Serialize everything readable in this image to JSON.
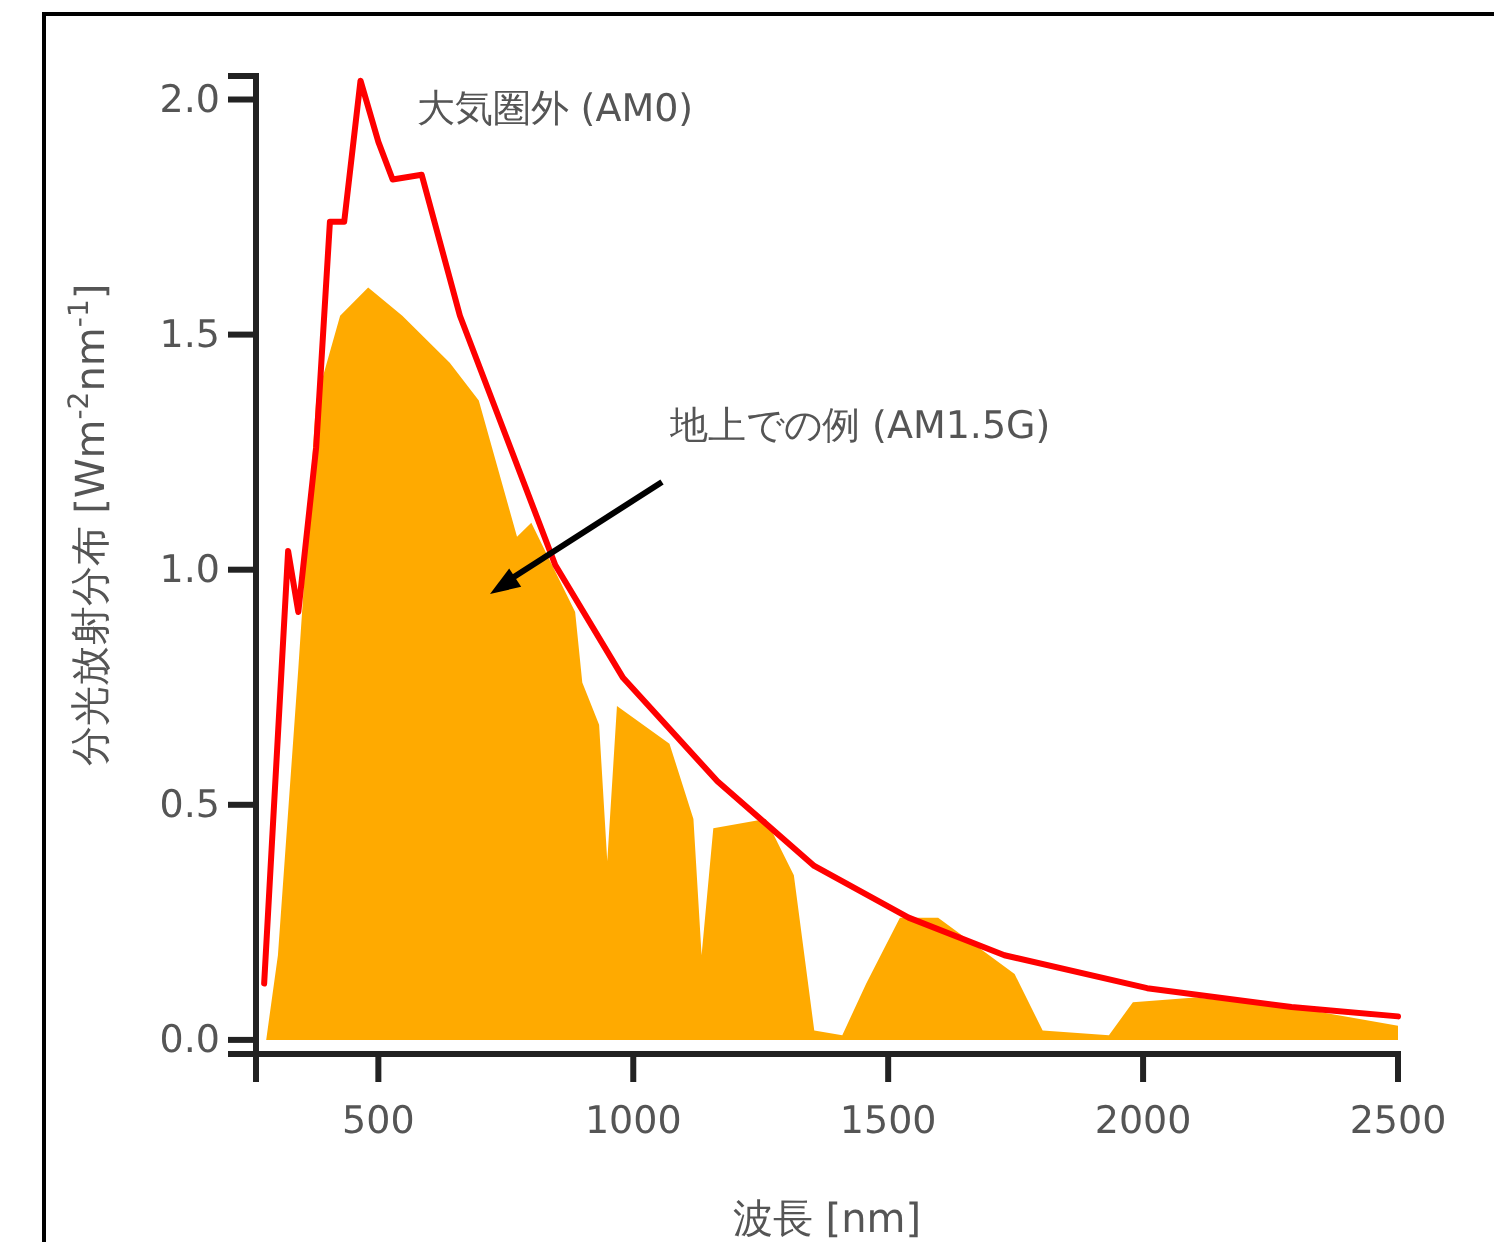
{
  "chart_data": {
    "type": "line",
    "xlabel": "波長 [nm]",
    "ylabel": "分光放射分布 [Wm$^{-2}$nm$^{-1}$]",
    "xlim": [
      260,
      2500
    ],
    "xticks": [
      500,
      1000,
      1500,
      2000,
      2500
    ],
    "ylim": [
      -0.03,
      2.05
    ],
    "yticks": [
      {
        "value": 0,
        "label": "0.0"
      },
      {
        "value": 0.5,
        "label": "0.5"
      },
      {
        "value": 1,
        "label": "1.0"
      },
      1.5,
      {
        "value": 2,
        "label": "2.0"
      }
    ],
    "grid": false,
    "legend": false,
    "annotations": [
      "地上での例 (AM1.5G)"
    ],
    "series": [
      {
        "type": "area",
        "color": "#ffaa00",
        "x": [
          280,
          303,
          343,
          378,
          425,
          480,
          547,
          640,
          697,
          772,
          800,
          886,
          900,
          933,
          949,
          968,
          1071,
          1118,
          1134,
          1157,
          1260,
          1315,
          1355,
          1410,
          1457,
          1523,
          1598,
          1748,
          1803,
          1933,
          1980,
          2102,
          2291,
          2500
        ],
        "values": [
          0,
          0.18,
          0.79,
          1.36,
          1.54,
          1.6,
          1.54,
          1.44,
          1.36,
          1.07,
          1.1,
          0.91,
          0.76,
          0.67,
          0.38,
          0.71,
          0.63,
          0.47,
          0.18,
          0.45,
          0.47,
          0.35,
          0.02,
          0.01,
          0.12,
          0.26,
          0.26,
          0.14,
          0.02,
          0.01,
          0.08,
          0.09,
          0.07,
          0.03
        ]
      },
      {
        "name": "大気圏外 (AM0)",
        "color": "#ff0000",
        "x": [
          276,
          323,
          343,
          378,
          405,
          433,
          465,
          500,
          528,
          585,
          660,
          847,
          980,
          1165,
          1355,
          1540,
          1728,
          2008,
          2291,
          2500
        ],
        "values": [
          0.12,
          1.04,
          0.91,
          1.26,
          1.74,
          1.74,
          2.04,
          1.91,
          1.83,
          1.84,
          1.54,
          1.01,
          0.77,
          0.55,
          0.37,
          0.26,
          0.18,
          0.11,
          0.07,
          0.05
        ]
      }
    ]
  }
}
